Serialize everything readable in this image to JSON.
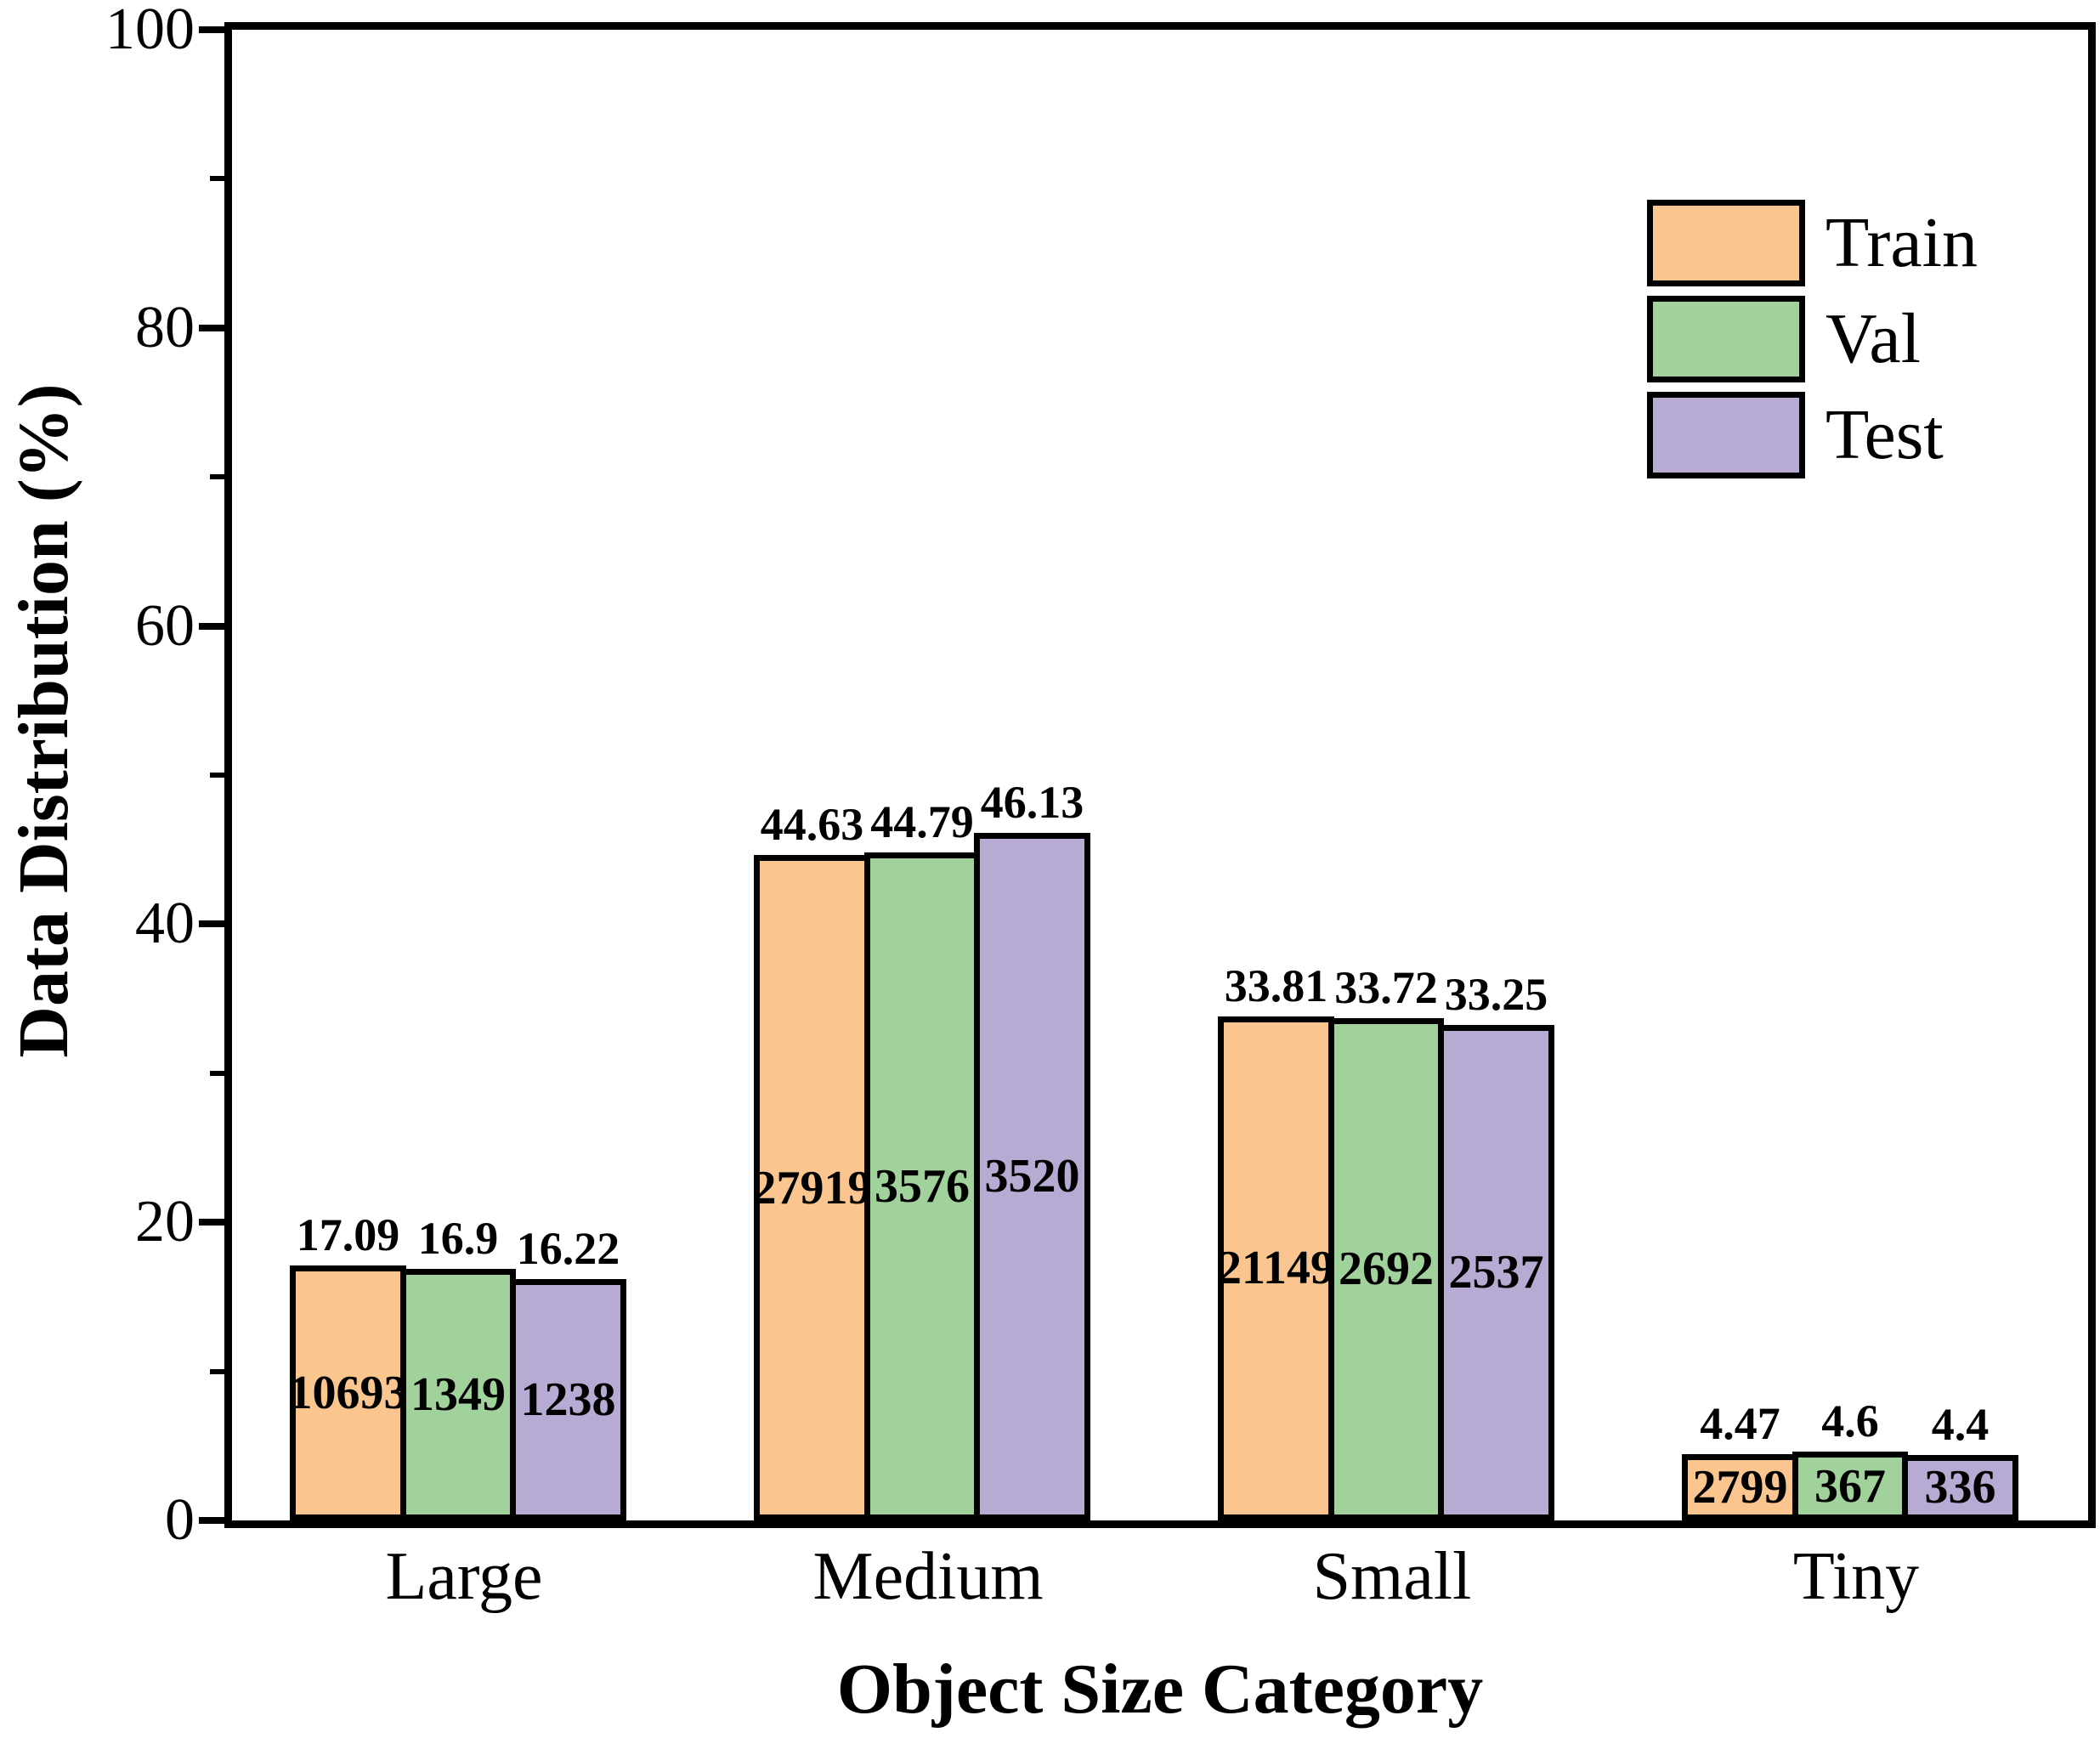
{
  "figure": {
    "background": "#ffffff",
    "frame_color": "#000000"
  },
  "axes": {
    "y_ticks": [
      0,
      20,
      40,
      60,
      80,
      100
    ],
    "y_minor_ticks": [
      10,
      30,
      50,
      70,
      90
    ]
  },
  "chart_data": {
    "type": "bar",
    "title": "",
    "xlabel": "Object Size Category",
    "ylabel": "Data Distribution (%)",
    "ylim": [
      0,
      100
    ],
    "grid": false,
    "legend_position": "upper-right",
    "bar_edge_color": "#000000",
    "categories": [
      "Large",
      "Medium",
      "Small",
      "Tiny"
    ],
    "series": [
      {
        "name": "Train",
        "color": "#FAC58E",
        "values": [
          17.09,
          44.63,
          33.81,
          4.47
        ],
        "counts": [
          10693,
          27919,
          21149,
          2799
        ]
      },
      {
        "name": "Val",
        "color": "#A2D29C",
        "values": [
          16.9,
          44.79,
          33.72,
          4.6
        ],
        "counts": [
          1349,
          3576,
          2692,
          367
        ]
      },
      {
        "name": "Test",
        "color": "#B7ABD3",
        "values": [
          16.22,
          46.13,
          33.25,
          4.4
        ],
        "counts": [
          1238,
          3520,
          2537,
          336
        ]
      }
    ]
  }
}
